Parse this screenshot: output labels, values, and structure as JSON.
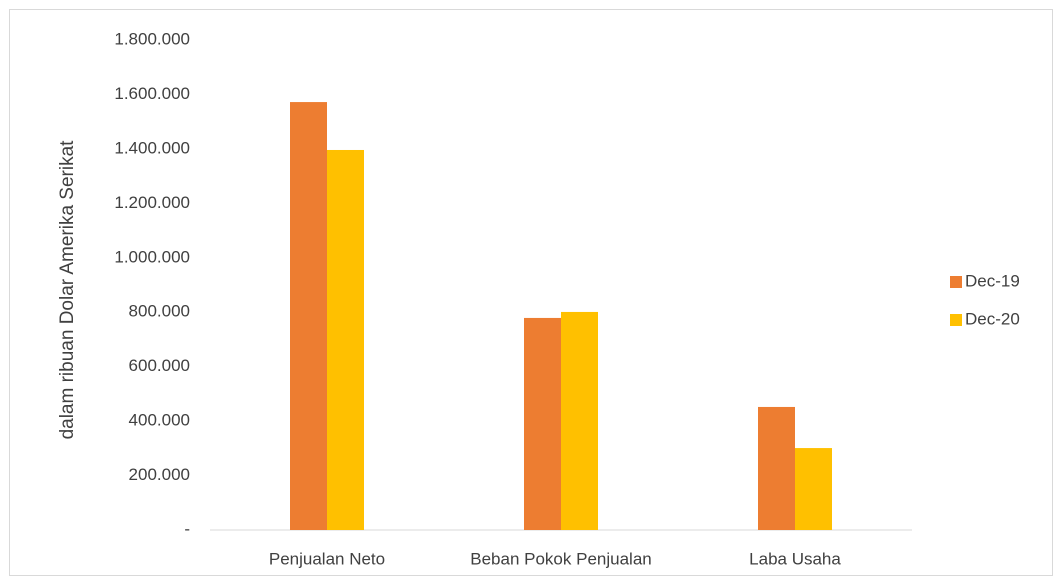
{
  "chart_data": {
    "type": "bar",
    "y_label": "dalam ribuan Dolar Amerika Serikat",
    "categories": [
      "Penjualan Neto",
      "Beban Pokok Penjualan",
      "Laba Usaha"
    ],
    "series": [
      {
        "name": "Dec-19",
        "color": "#ed7d31",
        "values": [
          1572000,
          779000,
          452000
        ]
      },
      {
        "name": "Dec-20",
        "color": "#ffc000",
        "values": [
          1396000,
          801000,
          301000
        ]
      }
    ],
    "ylim": [
      0,
      1800000
    ],
    "yticks": [
      {
        "value": 0,
        "label": "-"
      },
      {
        "value": 200000,
        "label": "200.000"
      },
      {
        "value": 400000,
        "label": "400.000"
      },
      {
        "value": 600000,
        "label": "600.000"
      },
      {
        "value": 800000,
        "label": "800.000"
      },
      {
        "value": 1000000,
        "label": "1.000.000"
      },
      {
        "value": 1200000,
        "label": "1.200.000"
      },
      {
        "value": 1400000,
        "label": "1.400.000"
      },
      {
        "value": 1600000,
        "label": "1.600.000"
      },
      {
        "value": 1800000,
        "label": "1.800.000"
      }
    ],
    "grid": false,
    "legend": "right"
  }
}
